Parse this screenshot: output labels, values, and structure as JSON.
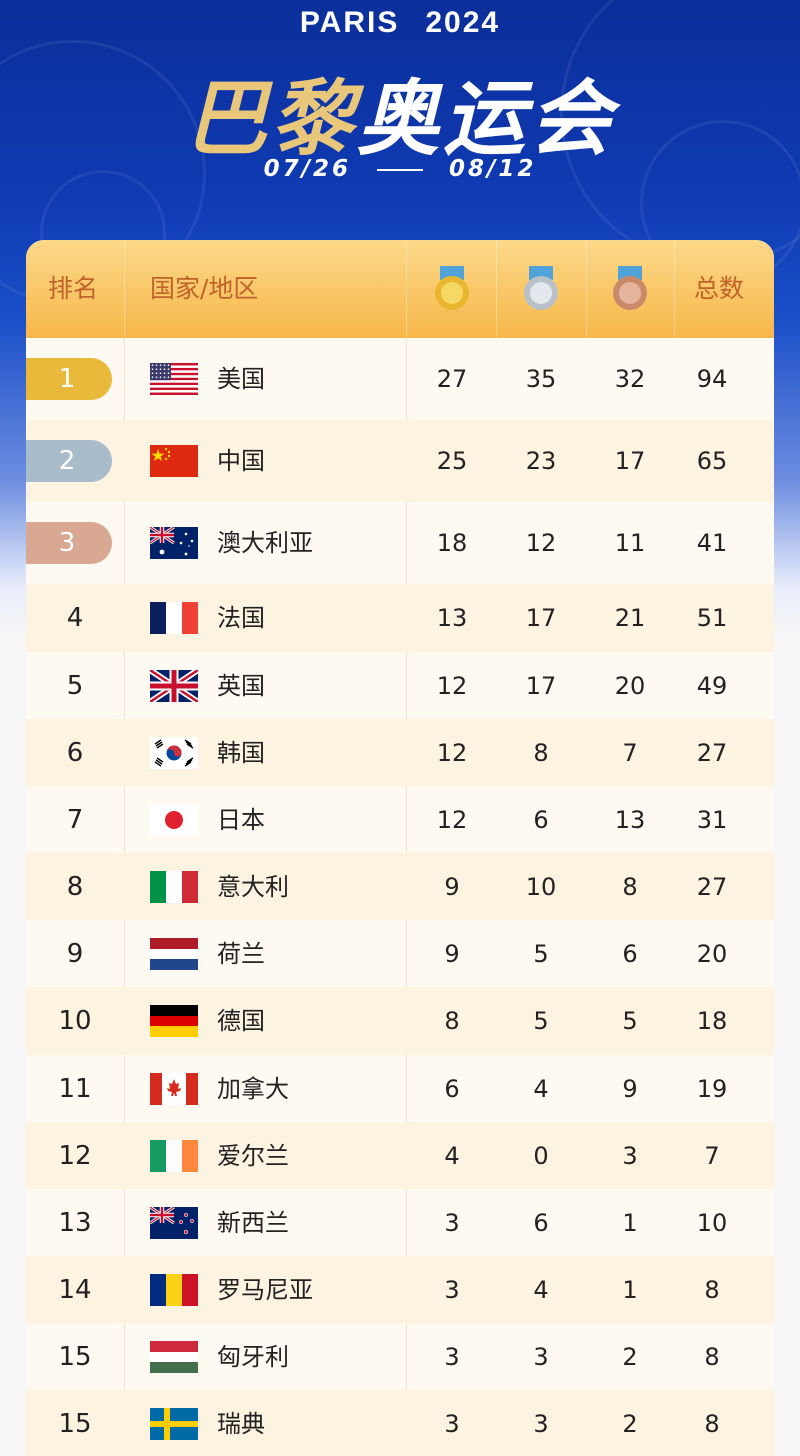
{
  "header": {
    "event_en": "PARIS",
    "year": "2024",
    "title_gold": "巴黎",
    "title_white": "奥运会",
    "date_start": "07/26",
    "date_end": "08/12"
  },
  "table": {
    "col_rank": "排名",
    "col_country": "国家/地区",
    "col_total": "总数",
    "medal_icons": [
      "gold-medal-icon",
      "silver-medal-icon",
      "bronze-medal-icon"
    ],
    "rows": [
      {
        "rank": "1",
        "country": "美国",
        "gold": "27",
        "silver": "35",
        "bronze": "32",
        "total": "94",
        "flag": "usa"
      },
      {
        "rank": "2",
        "country": "中国",
        "gold": "25",
        "silver": "23",
        "bronze": "17",
        "total": "65",
        "flag": "china"
      },
      {
        "rank": "3",
        "country": "澳大利亚",
        "gold": "18",
        "silver": "12",
        "bronze": "11",
        "total": "41",
        "flag": "australia"
      },
      {
        "rank": "4",
        "country": "法国",
        "gold": "13",
        "silver": "17",
        "bronze": "21",
        "total": "51",
        "flag": "france"
      },
      {
        "rank": "5",
        "country": "英国",
        "gold": "12",
        "silver": "17",
        "bronze": "20",
        "total": "49",
        "flag": "uk"
      },
      {
        "rank": "6",
        "country": "韩国",
        "gold": "12",
        "silver": "8",
        "bronze": "7",
        "total": "27",
        "flag": "korea"
      },
      {
        "rank": "7",
        "country": "日本",
        "gold": "12",
        "silver": "6",
        "bronze": "13",
        "total": "31",
        "flag": "japan"
      },
      {
        "rank": "8",
        "country": "意大利",
        "gold": "9",
        "silver": "10",
        "bronze": "8",
        "total": "27",
        "flag": "italy"
      },
      {
        "rank": "9",
        "country": "荷兰",
        "gold": "9",
        "silver": "5",
        "bronze": "6",
        "total": "20",
        "flag": "netherlands"
      },
      {
        "rank": "10",
        "country": "德国",
        "gold": "8",
        "silver": "5",
        "bronze": "5",
        "total": "18",
        "flag": "germany"
      },
      {
        "rank": "11",
        "country": "加拿大",
        "gold": "6",
        "silver": "4",
        "bronze": "9",
        "total": "19",
        "flag": "canada"
      },
      {
        "rank": "12",
        "country": "爱尔兰",
        "gold": "4",
        "silver": "0",
        "bronze": "3",
        "total": "7",
        "flag": "ireland"
      },
      {
        "rank": "13",
        "country": "新西兰",
        "gold": "3",
        "silver": "6",
        "bronze": "1",
        "total": "10",
        "flag": "newzealand"
      },
      {
        "rank": "14",
        "country": "罗马尼亚",
        "gold": "3",
        "silver": "4",
        "bronze": "1",
        "total": "8",
        "flag": "romania"
      },
      {
        "rank": "15",
        "country": "匈牙利",
        "gold": "3",
        "silver": "3",
        "bronze": "2",
        "total": "8",
        "flag": "hungary"
      },
      {
        "rank": "15",
        "country": "瑞典",
        "gold": "3",
        "silver": "3",
        "bronze": "2",
        "total": "8",
        "flag": "sweden"
      }
    ]
  },
  "colors": {
    "hero_blue": "#0f3ab2",
    "header_orange": "#f7b749",
    "header_text": "#c0622a",
    "gold_pill": "#e9b93c",
    "silver_pill": "#a9bccb",
    "bronze_pill": "#d9a892"
  }
}
